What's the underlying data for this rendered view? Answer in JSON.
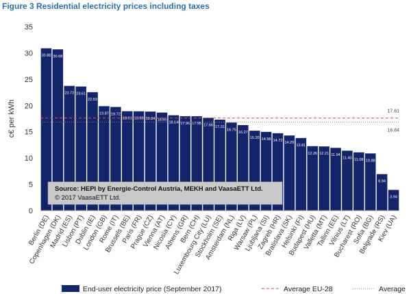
{
  "figure_title": "Figure 3 Residential electricity prices including taxes",
  "source_note": {
    "line1": "Source: HEPI by Energie-Control Austria, MEKH and VaasaETT Ltd.",
    "line2": "© 2017 VaasaETT Ltd."
  },
  "chart_data": {
    "type": "bar",
    "ylabel": "c€ per kWh",
    "ylim": [
      0,
      35
    ],
    "yticks": [
      0,
      5,
      10,
      15,
      20,
      25,
      30,
      35
    ],
    "grid": false,
    "legend_position": "bottom",
    "bar_color": "#14246b",
    "categories": [
      "Berlin (DE)",
      "Copenhagen (DK)",
      "Madrid (ES)",
      "Lisbon (PT)",
      "Dublin (IE)",
      "London (GB)",
      "Rome (IT)",
      "Brussels (BE)",
      "Paris (FR)",
      "Prague (CZ)",
      "Vienna (AT)",
      "Nicosia (CY)",
      "Athens (GR)",
      "Bern (CH)",
      "Luxembourg City (LU)",
      "Stockholm (SE)",
      "Amsterdam (NL)",
      "Riga (LV)",
      "Warsaw (PL)",
      "Ljubljana (SI)",
      "Zagreb (HR)",
      "Bratislava (SK)",
      "Helsinki (FI)",
      "Budapest (HU)",
      "Valletta (MT)",
      "Tallinn (EE)",
      "Vilnius (LT)",
      "Bucharest (RO)",
      "Sofia (BG)",
      "Belgrade (RS)",
      "Kiev (UA)"
    ],
    "series": [
      {
        "name": "End-user electricity price (September 2017)",
        "values": [
          30.88,
          30.68,
          23.73,
          23.61,
          22.53,
          19.87,
          19.72,
          18.91,
          18.9,
          18.84,
          18.65,
          18.14,
          17.96,
          17.95,
          17.66,
          17.31,
          16.75,
          16.27,
          15.2,
          14.98,
          14.72,
          14.29,
          13.81,
          12.26,
          12.21,
          11.94,
          11.4,
          11.08,
          10.88,
          6.94,
          3.94
        ],
        "labels": [
          "30.88",
          "30.68",
          "23.73",
          "23.61",
          "22.53",
          "19.87",
          "19.72",
          "18.91",
          "18.90",
          "18.84",
          "18.65",
          "18.14",
          "17.96",
          "17.95",
          "17.66",
          "17.31",
          "16.75",
          "16.27",
          "15.20",
          "14.98",
          "14.72",
          "14.29",
          "13.81",
          "12.26",
          "12.21",
          "11.94",
          "11.40",
          "11.08",
          "10.88",
          "6.94",
          "3.94"
        ]
      }
    ],
    "reference_lines": [
      {
        "name": "Average EU-28",
        "value": 17.61,
        "label": "17.61",
        "style": "dashed",
        "color": "#d9534f"
      },
      {
        "name": "Average",
        "value": 16.84,
        "label": "16.84",
        "style": "dotted",
        "color": "#8a8a8a"
      }
    ]
  }
}
